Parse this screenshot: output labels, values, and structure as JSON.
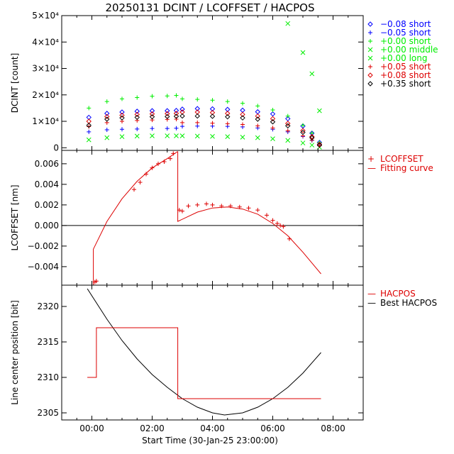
{
  "title": "20250131 DCINT / LCOFFSET / HACPOS",
  "xlabel": "Start Time (30-Jan-25 23:00:00)",
  "xticks": [
    "00:00",
    "02:00",
    "04:00",
    "06:00",
    "08:00"
  ],
  "colors": {
    "blue": "#0000ff",
    "green": "#00ee00",
    "red": "#dd0000",
    "black": "#000000"
  },
  "chart_data": [
    {
      "name": "dcint",
      "type": "scatter",
      "ylabel": "DCINT [count]",
      "ylim": [
        -1000,
        50000
      ],
      "yticks": [
        {
          "value": 0,
          "label": "0"
        },
        {
          "value": 10000,
          "label": "1×10⁴"
        },
        {
          "value": 20000,
          "label": "2×10⁴"
        },
        {
          "value": 30000,
          "label": "3×10⁴"
        },
        {
          "value": 40000,
          "label": "4×10⁴"
        },
        {
          "value": 50000,
          "label": "5×10⁴"
        }
      ],
      "x_hours": [
        -0.1,
        0.5,
        1.0,
        1.5,
        2.0,
        2.5,
        2.8,
        3.0,
        3.5,
        4.0,
        4.5,
        5.0,
        5.5,
        6.0,
        6.5,
        7.0,
        7.3,
        7.55
      ],
      "series": [
        {
          "legend": "−0.08 short",
          "marker": "diamond",
          "color": "blue",
          "y": [
            11500,
            13000,
            13500,
            13800,
            14000,
            14000,
            14100,
            14600,
            14800,
            14700,
            14500,
            14200,
            13600,
            12800,
            11000,
            8200,
            5500,
            2000
          ]
        },
        {
          "legend": "−0.05 short",
          "marker": "plus",
          "color": "blue",
          "y": [
            6000,
            6800,
            7000,
            7100,
            7300,
            7300,
            7400,
            8100,
            8200,
            8200,
            8100,
            7900,
            7500,
            7000,
            6000,
            4300,
            2800,
            800
          ]
        },
        {
          "legend": "+0.00 short",
          "marker": "plus",
          "color": "green",
          "y": [
            15000,
            17500,
            18500,
            19000,
            19500,
            19600,
            19800,
            18500,
            18300,
            18000,
            17500,
            16800,
            15800,
            14300,
            12000,
            8500,
            5500,
            2000
          ]
        },
        {
          "legend": "+0.00 middle",
          "marker": "x",
          "color": "green",
          "y": [
            null,
            null,
            null,
            null,
            null,
            null,
            null,
            null,
            null,
            null,
            null,
            null,
            null,
            null,
            47000,
            36000,
            28000,
            14000
          ]
        },
        {
          "legend": "+0.00 long",
          "marker": "x",
          "color": "green",
          "y": [
            3000,
            3800,
            4200,
            4400,
            4500,
            4500,
            4500,
            4500,
            4400,
            4300,
            4200,
            4000,
            3800,
            3400,
            2800,
            1800,
            1000,
            200
          ]
        },
        {
          "legend": "+0.05 short",
          "marker": "plus",
          "color": "red",
          "y": [
            8000,
            9500,
            10000,
            10300,
            10500,
            10700,
            10800,
            9500,
            9500,
            9300,
            9100,
            8800,
            8300,
            7500,
            6400,
            4500,
            2900,
            700
          ]
        },
        {
          "legend": "+0.08 short",
          "marker": "diamond",
          "color": "red",
          "y": [
            10000,
            11800,
            12300,
            12600,
            12800,
            12900,
            13000,
            13500,
            13500,
            13300,
            13000,
            12600,
            12000,
            11000,
            9200,
            6500,
            4200,
            1300
          ]
        },
        {
          "legend": "+0.35 short",
          "marker": "diamond",
          "color": "black",
          "y": [
            8500,
            10800,
            11300,
            11500,
            11700,
            11800,
            11900,
            12000,
            12000,
            11900,
            11700,
            11300,
            10800,
            9800,
            8300,
            5800,
            3800,
            1000
          ]
        }
      ]
    },
    {
      "name": "lcoffset",
      "type": "scatter+line",
      "ylabel": "LCOFFSET [nm]",
      "ylim": [
        -0.0058,
        0.0073
      ],
      "yticks": [
        {
          "value": -0.004,
          "label": "−0.004"
        },
        {
          "value": -0.002,
          "label": "−0.002"
        },
        {
          "value": 0.0,
          "label": "0.000"
        },
        {
          "value": 0.002,
          "label": "0.002"
        },
        {
          "value": 0.004,
          "label": "0.004"
        },
        {
          "value": 0.006,
          "label": "0.006"
        }
      ],
      "zero_line": 0.0,
      "legend": [
        {
          "symbol": "+",
          "label": "LCOFFSET",
          "color": "red"
        },
        {
          "symbol": "—",
          "label": "Fitting curve",
          "color": "red"
        }
      ],
      "points": {
        "x_hours": [
          0.1,
          0.15,
          1.4,
          1.6,
          1.8,
          2.0,
          2.2,
          2.4,
          2.6,
          2.7,
          2.9,
          3.0,
          3.2,
          3.5,
          3.8,
          4.0,
          4.3,
          4.6,
          4.9,
          5.2,
          5.5,
          5.8,
          6.0,
          6.15,
          6.25,
          6.35,
          6.55
        ],
        "y": [
          -0.0055,
          -0.0054,
          0.0035,
          0.0042,
          0.005,
          0.0056,
          0.006,
          0.0062,
          0.0065,
          0.007,
          0.0015,
          0.0014,
          0.0019,
          0.002,
          0.0021,
          0.002,
          0.0019,
          0.0019,
          0.0018,
          0.0017,
          0.0015,
          0.001,
          0.0005,
          0.0002,
          0.0,
          -0.0001,
          -0.0013
        ]
      },
      "fit": [
        {
          "x_hours": [
            -0.15,
            0.05,
            0.05,
            0.5,
            1.0,
            1.5,
            2.0,
            2.5,
            2.85
          ],
          "y": [
            -0.0058,
            -0.0058,
            -0.0023,
            0.0004,
            0.0026,
            0.0043,
            0.0056,
            0.0065,
            0.0072
          ]
        },
        {
          "x_hours": [
            2.85,
            2.85,
            3.5,
            4.0,
            4.5,
            5.0,
            5.5,
            6.0,
            6.5,
            7.0,
            7.6
          ],
          "y": [
            0.0072,
            0.0004,
            0.0013,
            0.0017,
            0.0018,
            0.0016,
            0.0011,
            0.0002,
            -0.001,
            -0.0026,
            -0.0047
          ]
        }
      ]
    },
    {
      "name": "hacpos",
      "type": "line",
      "ylabel": "Line center position [bit]",
      "ylim": [
        2304,
        2323
      ],
      "yticks": [
        {
          "value": 2305,
          "label": "2305"
        },
        {
          "value": 2310,
          "label": "2310"
        },
        {
          "value": 2315,
          "label": "2315"
        },
        {
          "value": 2320,
          "label": "2320"
        }
      ],
      "legend": [
        {
          "symbol": "—",
          "label": "HACPOS",
          "color": "red"
        },
        {
          "symbol": "—",
          "label": "Best HACPOS",
          "color": "black"
        }
      ],
      "hacpos": {
        "x_hours": [
          -0.15,
          0.15,
          0.15,
          2.85,
          2.85,
          7.6
        ],
        "y": [
          2310,
          2310,
          2317,
          2317,
          2307,
          2307
        ]
      },
      "best_hacpos": {
        "x_hours": [
          -0.15,
          0.5,
          1.0,
          1.5,
          2.0,
          2.5,
          3.0,
          3.5,
          4.0,
          4.4,
          5.0,
          5.5,
          6.0,
          6.5,
          7.0,
          7.6
        ],
        "y": [
          2322.5,
          2318.2,
          2315.2,
          2312.6,
          2310.4,
          2308.6,
          2307.0,
          2305.8,
          2305.0,
          2304.7,
          2305.0,
          2305.8,
          2307.0,
          2308.6,
          2310.6,
          2313.5
        ]
      }
    }
  ]
}
